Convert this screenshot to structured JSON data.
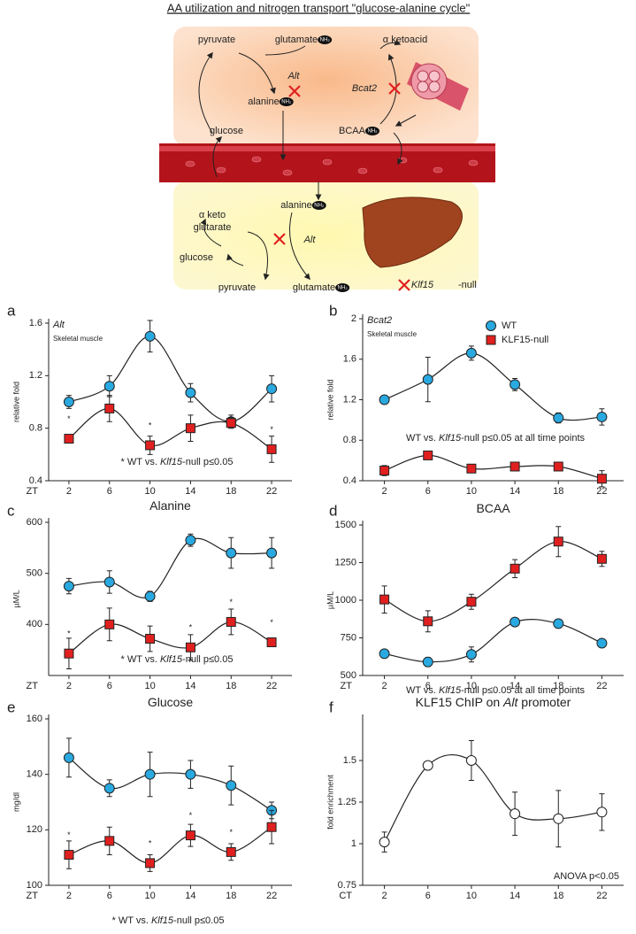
{
  "diagram": {
    "title": "AA utilization and nitrogen transport \"glucose-alanine cycle\"",
    "badge": "NH₂",
    "labels": [
      {
        "text": "pyruvate"
      },
      {
        "text": "glutamate",
        "badge": true
      },
      {
        "text": "α ketoacid"
      },
      {
        "text": "Alt",
        "italic": true
      },
      {
        "text": "alanine",
        "badge": true
      },
      {
        "text": "Bcat2",
        "italic": true
      },
      {
        "text": "glucose"
      },
      {
        "text": "BCAA",
        "badge": true
      },
      {
        "text": "α keto"
      },
      {
        "text": "glutarate"
      },
      {
        "text": "alanine",
        "badge": true
      },
      {
        "text": "Alt",
        "italic": true
      },
      {
        "text": "glucose"
      },
      {
        "text": "pyruvate"
      },
      {
        "text": "glutamate",
        "badge": true
      },
      {
        "text": "Klf15",
        "italic": true
      },
      {
        "text": "-null"
      }
    ]
  },
  "chart_data": [
    {
      "type": "line",
      "label": "a",
      "title": [
        {
          "text": "Alt",
          "italic": true
        }
      ],
      "subtitle": "Skeletal muscle",
      "ylabel": "relative fold",
      "xlabel": "ZT",
      "x": [
        2,
        6,
        10,
        14,
        18,
        22
      ],
      "xlim": [
        0,
        24
      ],
      "xticks": [
        2,
        6,
        10,
        14,
        18,
        22
      ],
      "ylim": [
        0.4,
        1.6
      ],
      "yticks": [
        0.4,
        0.8,
        1.2,
        1.6
      ],
      "series": [
        {
          "name": "WT",
          "color": "#29a9e0",
          "marker": "circle",
          "values": [
            1.0,
            1.12,
            1.5,
            1.07,
            0.85,
            1.1
          ],
          "errors": [
            0.05,
            0.08,
            0.12,
            0.07,
            0.05,
            0.1
          ]
        },
        {
          "name": "KLF15-null",
          "color": "#e0201f",
          "marker": "square",
          "values": [
            0.72,
            0.95,
            0.67,
            0.8,
            0.84,
            0.64
          ],
          "errors": [
            0.03,
            0.1,
            0.07,
            0.1,
            0.04,
            0.1
          ]
        }
      ],
      "sig_marker": "*",
      "significant": [
        true,
        false,
        true,
        false,
        false,
        true
      ],
      "annotation": [
        {
          "text": "* WT vs. "
        },
        {
          "text": "Klf15",
          "italic": true
        },
        {
          "text": "-null p≤0.05"
        }
      ]
    },
    {
      "type": "line",
      "label": "b",
      "title": [
        {
          "text": "Bcat2",
          "italic": true
        }
      ],
      "subtitle": "Skeletal muscle",
      "ylabel": "relative fold",
      "x": [
        2,
        6,
        10,
        14,
        18,
        22
      ],
      "xlim": [
        0,
        24
      ],
      "xticks": [
        2,
        6,
        10,
        14,
        18,
        22
      ],
      "ylim": [
        0.4,
        2
      ],
      "yticks": [
        0.4,
        0.8,
        1.2,
        1.6,
        2
      ],
      "legend": "upper right",
      "series": [
        {
          "name": "WT",
          "color": "#29a9e0",
          "marker": "circle",
          "values": [
            1.2,
            1.4,
            1.66,
            1.35,
            1.02,
            1.03
          ],
          "errors": [
            0.02,
            0.22,
            0.07,
            0.06,
            0.05,
            0.08
          ]
        },
        {
          "name": "KLF15-null",
          "color": "#e0201f",
          "marker": "square",
          "values": [
            0.5,
            0.65,
            0.52,
            0.54,
            0.54,
            0.42
          ],
          "errors": [
            0.05,
            0.03,
            0.03,
            0.04,
            0.04,
            0.08
          ]
        }
      ],
      "annotation": [
        {
          "text": "WT vs. "
        },
        {
          "text": "Klf15",
          "italic": true
        },
        {
          "text": "-null p≤0.05 at all time points"
        }
      ]
    },
    {
      "type": "line",
      "label": "c",
      "title": [
        {
          "text": "Alanine"
        }
      ],
      "ylabel": "µM/L",
      "xlabel": "ZT",
      "x": [
        2,
        6,
        10,
        14,
        18,
        22
      ],
      "xlim": [
        0,
        24
      ],
      "xticks": [
        2,
        6,
        10,
        14,
        18,
        22
      ],
      "ylim": [
        300,
        600
      ],
      "yticks": [
        400,
        500,
        600
      ],
      "series": [
        {
          "name": "WT",
          "color": "#29a9e0",
          "marker": "circle",
          "values": [
            475,
            483,
            455,
            565,
            540,
            540
          ],
          "errors": [
            15,
            22,
            10,
            12,
            30,
            30
          ]
        },
        {
          "name": "KLF15-null",
          "color": "#e0201f",
          "marker": "square",
          "values": [
            343,
            400,
            372,
            355,
            405,
            365
          ],
          "errors": [
            30,
            32,
            25,
            25,
            25,
            8
          ]
        }
      ],
      "sig_marker": "*",
      "significant": [
        true,
        false,
        false,
        true,
        true,
        true
      ],
      "annotation": [
        {
          "text": "* WT vs. "
        },
        {
          "text": "Klf15",
          "italic": true
        },
        {
          "text": "-null p≤0.05"
        }
      ]
    },
    {
      "type": "line",
      "label": "d",
      "title": [
        {
          "text": "BCAA"
        }
      ],
      "ylabel": "µM/L",
      "xlabel": "ZT",
      "x": [
        2,
        6,
        10,
        14,
        18,
        22
      ],
      "xlim": [
        0,
        24
      ],
      "xticks": [
        2,
        6,
        10,
        14,
        18,
        22
      ],
      "ylim": [
        500,
        1500
      ],
      "yticks": [
        500,
        750,
        1000,
        1250,
        1500
      ],
      "series": [
        {
          "name": "WT",
          "color": "#29a9e0",
          "marker": "circle",
          "values": [
            645,
            590,
            640,
            855,
            845,
            715
          ],
          "errors": [
            15,
            30,
            50,
            15,
            20,
            10
          ]
        },
        {
          "name": "KLF15-null",
          "color": "#e0201f",
          "marker": "square",
          "values": [
            1005,
            860,
            990,
            1210,
            1390,
            1275
          ],
          "errors": [
            90,
            70,
            50,
            60,
            100,
            50
          ]
        }
      ],
      "annotation": [
        {
          "text": "WT vs. "
        },
        {
          "text": "Klf15",
          "italic": true
        },
        {
          "text": "-null p≤0.05 at all time points"
        }
      ]
    },
    {
      "type": "line",
      "label": "e",
      "title": [
        {
          "text": "Glucose"
        }
      ],
      "ylabel": "mg/dl",
      "xlabel": "ZT",
      "x": [
        2,
        6,
        10,
        14,
        18,
        22
      ],
      "xlim": [
        0,
        24
      ],
      "xticks": [
        2,
        6,
        10,
        14,
        18,
        22
      ],
      "ylim": [
        100,
        160
      ],
      "yticks": [
        100,
        120,
        140,
        160
      ],
      "series": [
        {
          "name": "WT",
          "color": "#29a9e0",
          "marker": "circle",
          "values": [
            146,
            135,
            140,
            140,
            136,
            127
          ],
          "errors": [
            7,
            3,
            8,
            5,
            7,
            3
          ]
        },
        {
          "name": "KLF15-null",
          "color": "#e0201f",
          "marker": "square",
          "values": [
            111,
            116,
            108,
            118,
            112,
            121
          ],
          "errors": [
            5,
            5,
            3,
            4,
            3,
            6
          ]
        }
      ],
      "sig_marker": "*",
      "significant": [
        true,
        false,
        true,
        true,
        true,
        false
      ],
      "annotation": [
        {
          "text": "* WT vs. "
        },
        {
          "text": "Klf15",
          "italic": true
        },
        {
          "text": "-null p≤0.05"
        }
      ]
    },
    {
      "type": "line",
      "label": "f",
      "title": [
        {
          "text": "KLF15 ChIP on "
        },
        {
          "text": "Alt",
          "italic": true
        },
        {
          "text": " promoter"
        }
      ],
      "ylabel": "fold enrichment",
      "xlabel": "CT",
      "x": [
        2,
        6,
        10,
        14,
        18,
        22
      ],
      "xlim": [
        0,
        24
      ],
      "xticks": [
        2,
        6,
        10,
        14,
        18,
        22
      ],
      "ylim": [
        0.75,
        1.75
      ],
      "yticks": [
        0.75,
        1,
        1.25,
        1.5
      ],
      "series": [
        {
          "color": "#ffffff",
          "edgecolor": "#222222",
          "marker": "circle",
          "values": [
            1.01,
            1.47,
            1.5,
            1.18,
            1.15,
            1.19
          ],
          "errors": [
            0.06,
            0.01,
            0.12,
            0.13,
            0.17,
            0.11
          ]
        }
      ],
      "annotation": [
        {
          "text": "ANOVA p<0.05"
        }
      ]
    }
  ]
}
